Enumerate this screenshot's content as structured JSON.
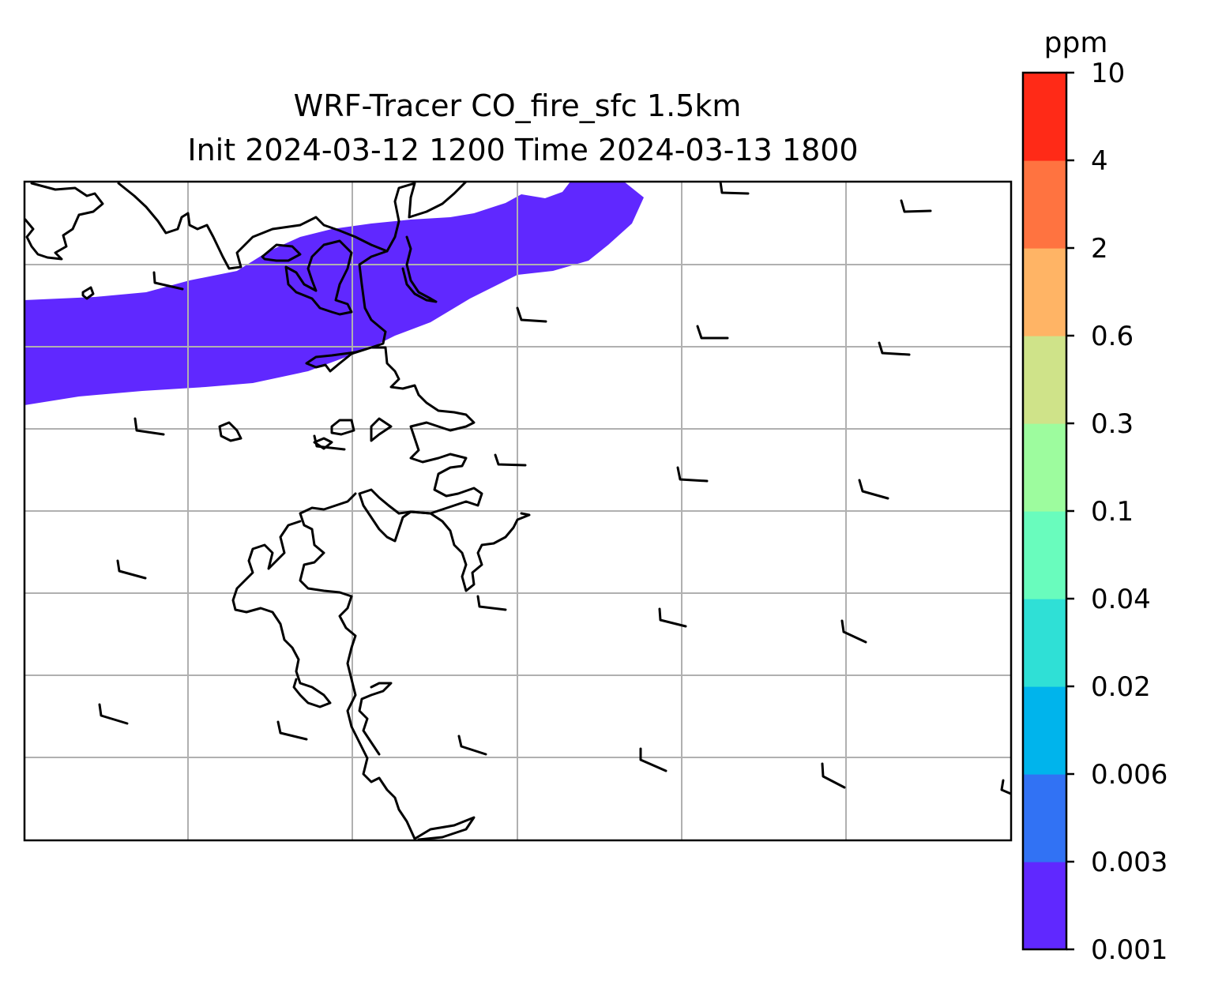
{
  "title_line1": "WRF-Tracer CO_fire_sfc 1.5km",
  "title_line2": "Init 2024-03-12 1200 Time 2024-03-13 1800",
  "colorbar": {
    "unit": "ppm",
    "levels": [
      "0.001",
      "0.003",
      "0.006",
      "0.02",
      "0.04",
      "0.1",
      "0.3",
      "0.6",
      "2",
      "4",
      "10"
    ],
    "colors": [
      "#6028ff",
      "#3172f4",
      "#00b4ec",
      "#2fe0d6",
      "#69fcbd",
      "#9dfc9e",
      "#cfe389",
      "#ffb465",
      "#ff7340",
      "#ff2a17"
    ]
  },
  "plume": {
    "level_band": "0.001–0.003",
    "color": "#6028ff"
  },
  "map": {
    "gridlines": true,
    "coastline": true,
    "wind_barbs": true
  }
}
